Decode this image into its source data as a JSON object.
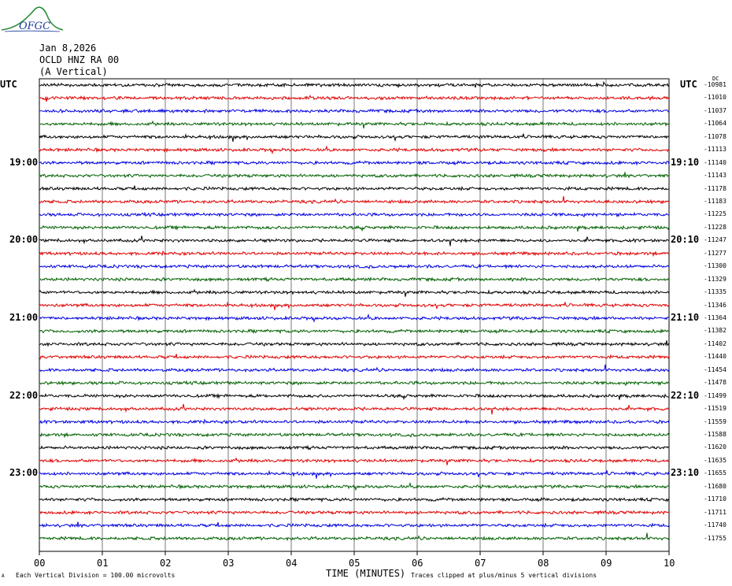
{
  "header": {
    "date": "Jan 8,2026",
    "station": "OCLD HNZ RA 00",
    "component": "(A Vertical)"
  },
  "logo": {
    "text": "OFGC",
    "colors": {
      "hill": "#2a8a3a",
      "text": "#1c3c9c"
    }
  },
  "utc_left": "UTC",
  "utc_right": "UTC",
  "dc_label": "DC",
  "left_times": [
    "19:00",
    "20:00",
    "21:00",
    "22:00",
    "23:00"
  ],
  "right_times": [
    "19:10",
    "20:10",
    "21:10",
    "22:10",
    "23:10"
  ],
  "xlabel": "TIME (MINUTES)",
  "footer_left": "Each Vertical Division =  100.00 microvolts",
  "footer_right": "Traces clipped at plus/minus 5 vertical divisions",
  "footer_mark": "A",
  "chart_data": {
    "type": "line",
    "x_ticks": [
      "00",
      "01",
      "02",
      "03",
      "04",
      "05",
      "06",
      "07",
      "08",
      "09",
      "10"
    ],
    "xlim": [
      0,
      10
    ],
    "trace_colors": [
      "#000000",
      "#e00000",
      "#0000e0",
      "#006000"
    ],
    "dc_offsets": [
      -10981,
      -11010,
      -11037,
      -11064,
      -11078,
      -11113,
      -11140,
      -11143,
      -11178,
      -11183,
      -11225,
      -11228,
      -11247,
      -11277,
      -11300,
      -11329,
      -11335,
      -11346,
      -11364,
      -11382,
      -11402,
      -11440,
      -11454,
      -11478,
      -11499,
      -11519,
      -11559,
      -11588,
      -11620,
      -11635,
      -11655,
      -11680,
      -11710,
      -11711,
      -11740,
      -11755
    ]
  }
}
